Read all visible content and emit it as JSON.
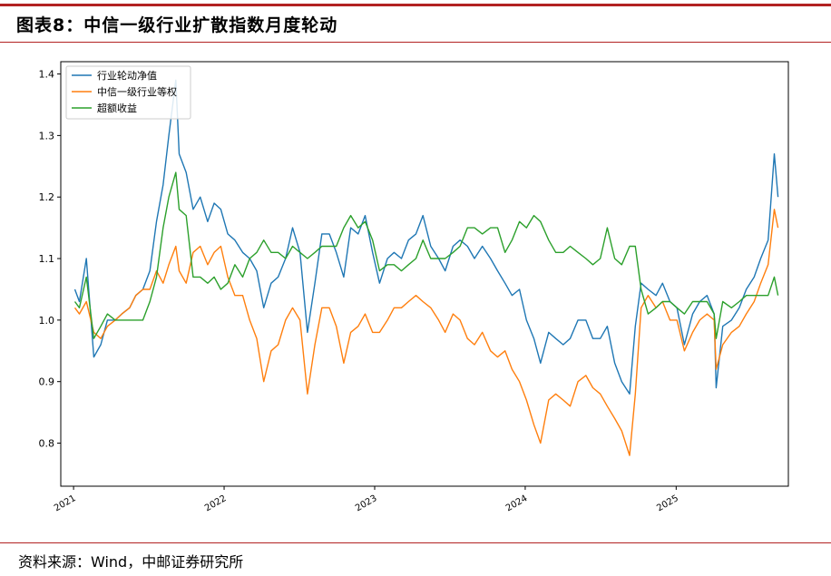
{
  "header": {
    "title": "图表8：中信一级行业扩散指数月度轮动"
  },
  "source": "资料来源：Wind，中邮证券研究所",
  "colors": {
    "rule": "#b22222",
    "series1": "#1f77b4",
    "series2": "#ff7f0e",
    "series3": "#2ca02c"
  },
  "chart_data": {
    "type": "line",
    "title": "",
    "xlabel": "",
    "ylabel": "",
    "x_ticks": [
      "2021",
      "2022",
      "2023",
      "2024",
      "2025"
    ],
    "x_range": [
      "2020-12-01",
      "2025-09-30"
    ],
    "y_ticks": [
      "0.8",
      "0.9",
      "1.0",
      "1.1",
      "1.2",
      "1.3",
      "1.4"
    ],
    "ylim": [
      0.73,
      1.42
    ],
    "legend_position": "top-left",
    "grid": false,
    "x": [
      "2021-01-04",
      "2021-01-15",
      "2021-02-01",
      "2021-02-19",
      "2021-03-08",
      "2021-03-24",
      "2021-04-12",
      "2021-04-28",
      "2021-05-17",
      "2021-06-01",
      "2021-06-18",
      "2021-07-05",
      "2021-07-21",
      "2021-08-06",
      "2021-08-20",
      "2021-09-06",
      "2021-09-14",
      "2021-10-01",
      "2021-10-18",
      "2021-11-04",
      "2021-11-22",
      "2021-12-08",
      "2021-12-24",
      "2022-01-10",
      "2022-01-27",
      "2022-02-15",
      "2022-03-04",
      "2022-03-21",
      "2022-04-07",
      "2022-04-25",
      "2022-05-12",
      "2022-05-30",
      "2022-06-16",
      "2022-07-04",
      "2022-07-22",
      "2022-08-09",
      "2022-08-26",
      "2022-09-13",
      "2022-09-30",
      "2022-10-18",
      "2022-11-04",
      "2022-11-22",
      "2022-12-09",
      "2022-12-27",
      "2023-01-13",
      "2023-02-01",
      "2023-02-17",
      "2023-03-07",
      "2023-03-24",
      "2023-04-11",
      "2023-04-28",
      "2023-05-17",
      "2023-06-05",
      "2023-06-21",
      "2023-07-10",
      "2023-07-27",
      "2023-08-14",
      "2023-08-31",
      "2023-09-19",
      "2023-10-09",
      "2023-10-26",
      "2023-11-13",
      "2023-11-30",
      "2023-12-18",
      "2024-01-04",
      "2024-01-22",
      "2024-02-07",
      "2024-02-27",
      "2024-03-15",
      "2024-04-02",
      "2024-04-19",
      "2024-05-08",
      "2024-05-27",
      "2024-06-13",
      "2024-07-01",
      "2024-07-18",
      "2024-08-05",
      "2024-08-22",
      "2024-09-10",
      "2024-09-24",
      "2024-10-08",
      "2024-10-25",
      "2024-11-13",
      "2024-11-29",
      "2024-12-17",
      "2025-01-03",
      "2025-01-21",
      "2025-02-10",
      "2025-02-27",
      "2025-03-17",
      "2025-04-03",
      "2025-04-08",
      "2025-04-24",
      "2025-05-15",
      "2025-06-03",
      "2025-06-20",
      "2025-07-09",
      "2025-07-25",
      "2025-08-12",
      "2025-08-27",
      "2025-09-05"
    ],
    "series": [
      {
        "name": "行业轮动净值",
        "values": [
          1.05,
          1.03,
          1.1,
          0.94,
          0.96,
          1.0,
          1.0,
          1.01,
          1.02,
          1.04,
          1.05,
          1.08,
          1.16,
          1.22,
          1.3,
          1.39,
          1.27,
          1.24,
          1.18,
          1.2,
          1.16,
          1.19,
          1.18,
          1.14,
          1.13,
          1.11,
          1.1,
          1.08,
          1.02,
          1.06,
          1.07,
          1.1,
          1.15,
          1.11,
          0.98,
          1.06,
          1.14,
          1.14,
          1.11,
          1.07,
          1.15,
          1.14,
          1.17,
          1.11,
          1.06,
          1.1,
          1.11,
          1.1,
          1.13,
          1.14,
          1.17,
          1.12,
          1.1,
          1.08,
          1.12,
          1.13,
          1.12,
          1.1,
          1.12,
          1.1,
          1.08,
          1.06,
          1.04,
          1.05,
          1.0,
          0.97,
          0.93,
          0.98,
          0.97,
          0.96,
          0.97,
          1.0,
          1.0,
          0.97,
          0.97,
          0.99,
          0.93,
          0.9,
          0.88,
          0.99,
          1.06,
          1.05,
          1.04,
          1.06,
          1.03,
          1.02,
          0.96,
          1.01,
          1.03,
          1.04,
          1.01,
          0.89,
          0.99,
          1.0,
          1.02,
          1.05,
          1.07,
          1.1,
          1.13,
          1.27,
          1.2
        ]
      },
      {
        "name": "中信一级行业等权",
        "values": [
          1.02,
          1.01,
          1.03,
          0.98,
          0.97,
          0.99,
          1.0,
          1.01,
          1.02,
          1.04,
          1.05,
          1.05,
          1.08,
          1.06,
          1.09,
          1.12,
          1.08,
          1.06,
          1.11,
          1.12,
          1.09,
          1.11,
          1.12,
          1.07,
          1.04,
          1.04,
          1.0,
          0.97,
          0.9,
          0.95,
          0.96,
          1.0,
          1.02,
          1.0,
          0.88,
          0.96,
          1.02,
          1.02,
          0.99,
          0.93,
          0.98,
          0.99,
          1.01,
          0.98,
          0.98,
          1.0,
          1.02,
          1.02,
          1.03,
          1.04,
          1.03,
          1.02,
          1.0,
          0.98,
          1.01,
          1.0,
          0.97,
          0.96,
          0.98,
          0.95,
          0.94,
          0.95,
          0.92,
          0.9,
          0.87,
          0.83,
          0.8,
          0.87,
          0.88,
          0.87,
          0.86,
          0.9,
          0.91,
          0.89,
          0.88,
          0.86,
          0.84,
          0.82,
          0.78,
          0.88,
          1.02,
          1.04,
          1.02,
          1.03,
          1.0,
          1.0,
          0.95,
          0.98,
          1.0,
          1.01,
          1.0,
          0.92,
          0.96,
          0.98,
          0.99,
          1.01,
          1.03,
          1.06,
          1.09,
          1.18,
          1.15
        ]
      },
      {
        "name": "超额收益",
        "values": [
          1.03,
          1.02,
          1.07,
          0.97,
          0.99,
          1.01,
          1.0,
          1.0,
          1.0,
          1.0,
          1.0,
          1.03,
          1.07,
          1.15,
          1.2,
          1.24,
          1.18,
          1.17,
          1.07,
          1.07,
          1.06,
          1.07,
          1.05,
          1.06,
          1.09,
          1.07,
          1.1,
          1.11,
          1.13,
          1.11,
          1.11,
          1.1,
          1.12,
          1.11,
          1.1,
          1.11,
          1.12,
          1.12,
          1.12,
          1.15,
          1.17,
          1.15,
          1.16,
          1.13,
          1.08,
          1.09,
          1.09,
          1.08,
          1.09,
          1.1,
          1.13,
          1.1,
          1.1,
          1.1,
          1.11,
          1.12,
          1.15,
          1.15,
          1.14,
          1.15,
          1.15,
          1.11,
          1.13,
          1.16,
          1.15,
          1.17,
          1.16,
          1.13,
          1.11,
          1.11,
          1.12,
          1.11,
          1.1,
          1.09,
          1.1,
          1.15,
          1.1,
          1.09,
          1.12,
          1.12,
          1.05,
          1.01,
          1.02,
          1.03,
          1.03,
          1.02,
          1.01,
          1.03,
          1.03,
          1.03,
          1.01,
          0.97,
          1.03,
          1.02,
          1.03,
          1.04,
          1.04,
          1.04,
          1.04,
          1.07,
          1.04
        ]
      }
    ]
  }
}
